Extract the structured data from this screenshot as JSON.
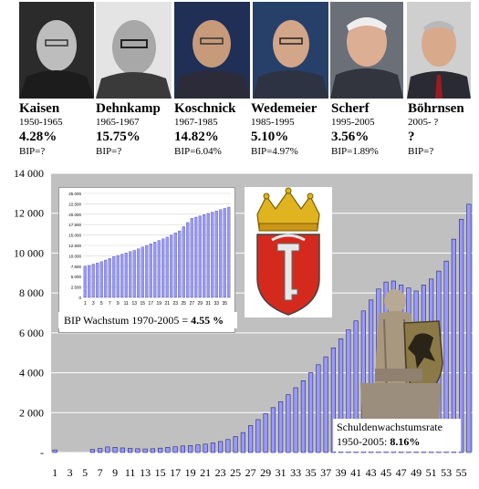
{
  "mayors": [
    {
      "name": "Kaisen",
      "years": "1950-1965",
      "rate": "4.28%",
      "bip": "BIP=?"
    },
    {
      "name": "Dehnkamp",
      "years": "1965-1967",
      "rate": "15.75%",
      "bip": "BIP=?"
    },
    {
      "name": "Koschnick",
      "years": "1967-1985",
      "rate": "14.82%",
      "bip": "BIP=6.04%"
    },
    {
      "name": "Wedemeier",
      "years": "1985-1995",
      "rate": "5.10%",
      "bip": "BIP=4.97%"
    },
    {
      "name": "Scherf",
      "years": "1995-2005",
      "rate": "3.56%",
      "bip": "BIP=1.89%"
    },
    {
      "name": "Böhrnsen",
      "years": "2005- ?",
      "rate": "?",
      "bip": "BIP=?"
    }
  ],
  "inset": {
    "caption": "BIP Wachstum 1970-2005 = ",
    "caption_value": "4.55 %",
    "yticks": [
      "25.000",
      "22.500",
      "20.000",
      "17.500",
      "15.000",
      "12.500",
      "10.000",
      "7.500",
      "5.000",
      "2.500",
      "0"
    ],
    "xticks": [
      "1",
      "3",
      "5",
      "7",
      "9",
      "11",
      "13",
      "15",
      "17",
      "19",
      "21",
      "23",
      "25",
      "27",
      "29",
      "31",
      "33",
      "35"
    ]
  },
  "debt": {
    "caption_line1": "Schuldenwachstumsrate",
    "caption_line2": "1950-2005: ",
    "caption_value": "8.16%"
  },
  "colors": {
    "bar_fill": "#9999ff",
    "bar_edge": "#2a2a6e",
    "plot_bg": "#c0c0c0"
  },
  "chart_data": [
    {
      "type": "bar",
      "title": "",
      "xlabel": "",
      "ylabel": "",
      "ylim": [
        0,
        14000
      ],
      "ytick_labels": [
        "14 000",
        "12 000",
        "10 000",
        "8 000",
        "6 000",
        "4 000",
        "2 000",
        "-"
      ],
      "yticks": [
        14000,
        12000,
        10000,
        8000,
        6000,
        4000,
        2000,
        0
      ],
      "x": [
        1,
        2,
        3,
        4,
        5,
        6,
        7,
        8,
        9,
        10,
        11,
        12,
        13,
        14,
        15,
        16,
        17,
        18,
        19,
        20,
        21,
        22,
        23,
        24,
        25,
        26,
        27,
        28,
        29,
        30,
        31,
        32,
        33,
        34,
        35,
        36,
        37,
        38,
        39,
        40,
        41,
        42,
        43,
        44,
        45,
        46,
        47,
        48,
        49,
        50,
        51,
        52,
        53,
        54,
        55,
        56
      ],
      "xtick_labels": [
        "1",
        "3",
        "5",
        "7",
        "9",
        "11",
        "13",
        "15",
        "17",
        "19",
        "21",
        "23",
        "25",
        "27",
        "29",
        "31",
        "33",
        "35",
        "37",
        "39",
        "41",
        "43",
        "45",
        "47",
        "49",
        "51",
        "53",
        "55"
      ],
      "values": [
        130,
        0,
        0,
        0,
        0,
        150,
        200,
        280,
        260,
        230,
        210,
        190,
        180,
        190,
        220,
        260,
        290,
        330,
        350,
        380,
        420,
        480,
        550,
        650,
        800,
        1000,
        1350,
        1650,
        1950,
        2250,
        2550,
        2900,
        3250,
        3600,
        4000,
        4400,
        4800,
        5250,
        5700,
        6150,
        6600,
        7100,
        7650,
        8200,
        8550,
        8600,
        8400,
        8250,
        8100,
        8400,
        8700,
        9100,
        9600,
        10700,
        11700,
        12450
      ],
      "grid": true
    },
    {
      "type": "bar",
      "title": "",
      "ylim": [
        0,
        25000
      ],
      "x": [
        1,
        2,
        3,
        4,
        5,
        6,
        7,
        8,
        9,
        10,
        11,
        12,
        13,
        14,
        15,
        16,
        17,
        18,
        19,
        20,
        21,
        22,
        23,
        24,
        25,
        26,
        27,
        28,
        29,
        30,
        31,
        32,
        33,
        34,
        35,
        36
      ],
      "values": [
        7500,
        7700,
        8000,
        8300,
        8600,
        9000,
        9400,
        9800,
        10100,
        10400,
        10700,
        11000,
        11300,
        11700,
        12100,
        12500,
        12900,
        13300,
        13700,
        14100,
        14500,
        15000,
        15500,
        16000,
        17000,
        18000,
        19000,
        19300,
        19600,
        19900,
        20200,
        20500,
        20800,
        21100,
        21400,
        21700
      ],
      "grid": true
    }
  ]
}
